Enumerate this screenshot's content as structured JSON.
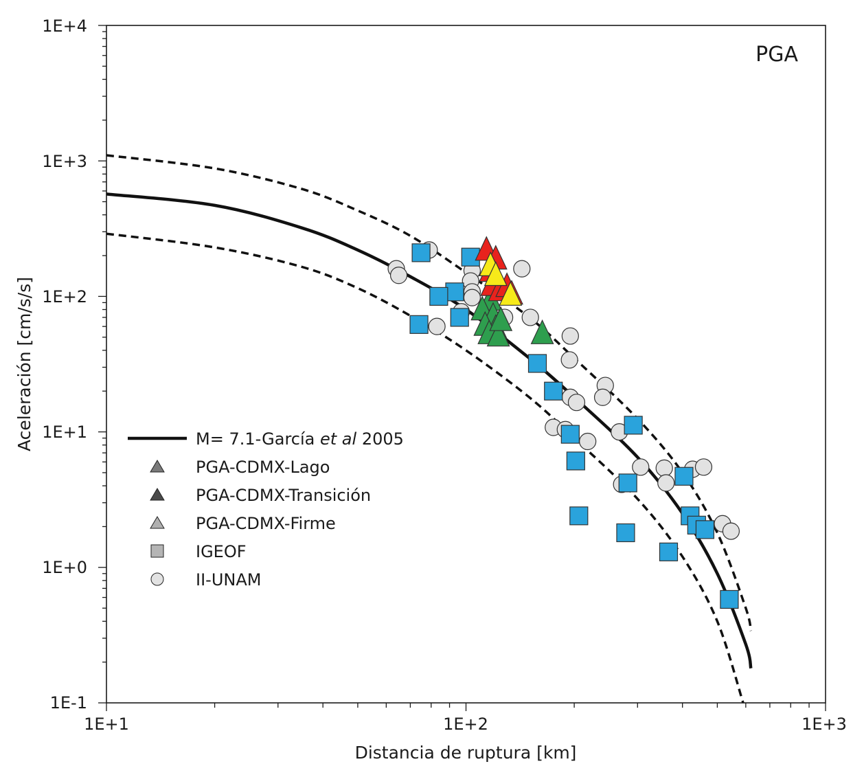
{
  "chart_data": {
    "type": "scatter",
    "panel_label": "PGA",
    "xlabel": "Distancia de ruptura [km]",
    "ylabel": "Aceleración [cm/s/s]",
    "x_scale": "log",
    "y_scale": "log",
    "xlim": [
      10,
      1000
    ],
    "ylim": [
      0.1,
      10000
    ],
    "x_tick_labels": [
      "1E+1",
      "1E+2",
      "1E+3"
    ],
    "y_tick_labels": [
      "1E-1",
      "1E+0",
      "1E+1",
      "1E+2",
      "1E+3",
      "1E+4"
    ],
    "legend_position": "lower-left",
    "colors": {
      "curve": "#111111",
      "lago": "#e8231d",
      "transicion": "#f7ea1a",
      "firme": "#2e9e4e",
      "igeof": "#2aa3dc",
      "iiunam": "#e2e2e2"
    },
    "legend": [
      {
        "key": "curve",
        "label_pre": "M= 7.1-García ",
        "label_em": "et al",
        "label_post": " 2005",
        "marker": "line"
      },
      {
        "key": "lago",
        "label": "PGA-CDMX-Lago",
        "marker": "triangle-mid"
      },
      {
        "key": "transicion",
        "label": "PGA-CDMX-Transición",
        "marker": "triangle-dark"
      },
      {
        "key": "firme",
        "label": "PGA-CDMX-Firme",
        "marker": "triangle-light"
      },
      {
        "key": "igeof",
        "label": "IGEOF",
        "marker": "square"
      },
      {
        "key": "iiunam",
        "label": "II-UNAM",
        "marker": "circle"
      }
    ],
    "curves": [
      {
        "name": "M= 7.1-García et al 2005",
        "style": "solid",
        "x": [
          10,
          20,
          35,
          50,
          70,
          100,
          150,
          200,
          300,
          400,
          500,
          600,
          620
        ],
        "y": [
          570,
          470,
          320,
          220,
          140,
          80,
          35,
          18,
          6.5,
          2.5,
          0.9,
          0.27,
          0.18
        ]
      },
      {
        "name": "",
        "style": "dashed",
        "x": [
          10,
          20,
          35,
          50,
          70,
          100,
          150,
          200,
          300,
          400,
          500,
          600,
          620
        ],
        "y": [
          1100,
          880,
          620,
          430,
          280,
          150,
          70,
          35,
          12.5,
          5,
          1.8,
          0.5,
          0.34
        ]
      },
      {
        "name": "",
        "style": "dashed",
        "x": [
          10,
          20,
          35,
          50,
          70,
          100,
          150,
          200,
          300,
          400,
          500,
          590
        ],
        "y": [
          290,
          230,
          165,
          115,
          72,
          40,
          18,
          9,
          3.2,
          1.2,
          0.4,
          0.1
        ]
      }
    ],
    "series": [
      {
        "name": "PGA-CDMX-Lago",
        "marker": "triangle",
        "color_key": "lago",
        "points": [
          [
            114,
            215
          ],
          [
            121,
            185
          ],
          [
            117,
            150
          ],
          [
            118,
            118
          ],
          [
            124,
            108
          ],
          [
            130,
            116
          ],
          [
            134,
            102
          ]
        ]
      },
      {
        "name": "PGA-CDMX-Transición",
        "marker": "triangle",
        "color_key": "transicion",
        "points": [
          [
            117,
            165
          ],
          [
            121,
            140
          ],
          [
            133,
            100
          ]
        ]
      },
      {
        "name": "PGA-CDMX-Firme",
        "marker": "triangle",
        "color_key": "firme",
        "points": [
          [
            117,
            92
          ],
          [
            111,
            78
          ],
          [
            119,
            70
          ],
          [
            113,
            60
          ],
          [
            121,
            57
          ],
          [
            116,
            52
          ],
          [
            123,
            50
          ],
          [
            163,
            52
          ],
          [
            125,
            65
          ]
        ]
      },
      {
        "name": "IGEOF",
        "marker": "square",
        "color_key": "igeof",
        "points": [
          [
            75,
            210
          ],
          [
            103,
            195
          ],
          [
            93,
            108
          ],
          [
            84,
            100
          ],
          [
            96,
            70
          ],
          [
            74,
            62
          ],
          [
            158,
            32
          ],
          [
            175,
            20
          ],
          [
            195,
            9.6
          ],
          [
            202,
            6.1
          ],
          [
            206,
            2.4
          ],
          [
            292,
            11.2
          ],
          [
            282,
            4.2
          ],
          [
            278,
            1.8
          ],
          [
            366,
            1.3
          ],
          [
            404,
            4.7
          ],
          [
            420,
            2.4
          ],
          [
            438,
            2.05
          ],
          [
            462,
            1.9
          ],
          [
            540,
            0.58
          ]
        ]
      },
      {
        "name": "II-UNAM",
        "marker": "circle",
        "color_key": "iiunam",
        "points": [
          [
            79,
            220
          ],
          [
            64,
            160
          ],
          [
            65,
            143
          ],
          [
            143,
            160
          ],
          [
            104,
            155
          ],
          [
            103,
            130
          ],
          [
            104,
            108
          ],
          [
            104,
            98
          ],
          [
            97,
            77
          ],
          [
            83,
            60
          ],
          [
            128,
            70
          ],
          [
            151,
            70
          ],
          [
            195,
            51
          ],
          [
            194,
            34
          ],
          [
            244,
            22
          ],
          [
            240,
            18
          ],
          [
            195,
            18
          ],
          [
            203,
            16.5
          ],
          [
            175,
            10.8
          ],
          [
            189,
            10.4
          ],
          [
            218,
            8.5
          ],
          [
            267,
            10
          ],
          [
            306,
            5.5
          ],
          [
            356,
            5.4
          ],
          [
            360,
            4.2
          ],
          [
            427,
            5.3
          ],
          [
            458,
            5.5
          ],
          [
            271,
            4.1
          ],
          [
            517,
            2.1
          ],
          [
            546,
            1.85
          ]
        ]
      }
    ]
  }
}
